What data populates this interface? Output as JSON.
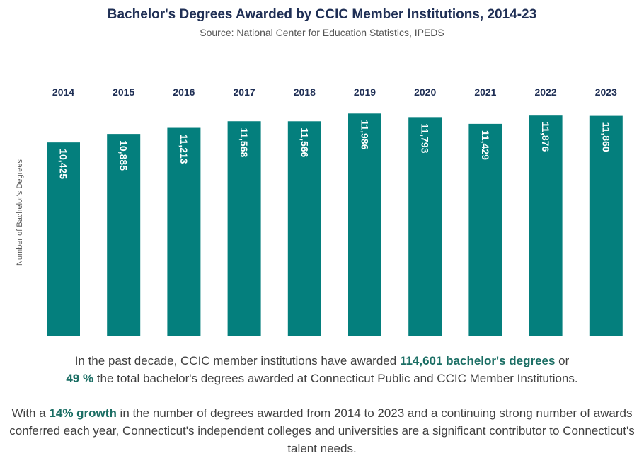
{
  "chart_data": {
    "type": "bar",
    "title": "Bachelor's Degrees Awarded by CCIC Member Institutions, 2014-23",
    "subtitle": "Source: National Center for Education Statistics, IPEDS",
    "ylabel": "Number of Bachelor's Degrees",
    "xlabel": "",
    "categories": [
      "2014",
      "2015",
      "2016",
      "2017",
      "2018",
      "2019",
      "2020",
      "2021",
      "2022",
      "2023"
    ],
    "values": [
      10425,
      10885,
      11213,
      11568,
      11566,
      11986,
      11793,
      11429,
      11876,
      11860
    ],
    "value_labels": [
      "10,425",
      "10,885",
      "11,213",
      "11,568",
      "11,566",
      "11,986",
      "11,793",
      "11,429",
      "11,876",
      "11,860"
    ],
    "ylim": [
      0,
      12800
    ],
    "grid": false,
    "legend": "none",
    "bar_color": "#047f7d"
  },
  "text": {
    "p1_part1": "In the past decade, CCIC member institutions have awarded ",
    "p1_highlight1": "114,601 bachelor's degrees",
    "p1_part2": " or ",
    "p1_highlight2": "49 %",
    "p1_part3": " the total bachelor's degrees awarded at Connecticut Public and CCIC Member Institutions.",
    "p2_part1": "With a ",
    "p2_highlight1": "14% growth",
    "p2_part2": " in the number of degrees awarded from 2014 to 2023 and a continuing strong number of awards conferred each year, Connecticut's independent colleges and universities are a significant contributor to Connecticut's talent needs."
  },
  "colors": {
    "title": "#1f2f55",
    "highlight": "#1b6e64"
  }
}
